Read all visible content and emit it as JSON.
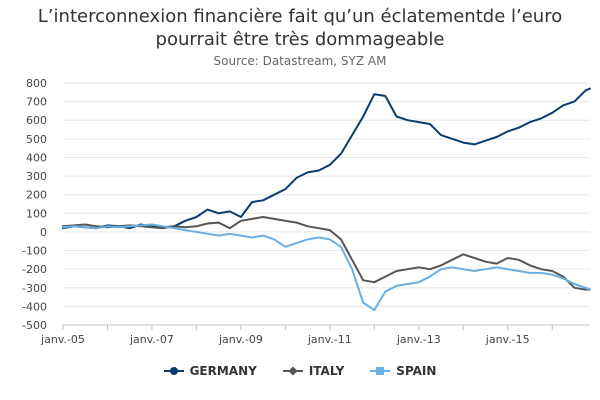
{
  "chart_data": {
    "type": "line",
    "title": "L’interconnexion financière fait qu’un éclatementde l’euro pourrait être très dommageable",
    "title_lines": [
      "L’interconnexion financière fait qu’un éclatementde l’euro",
      "pourrait être très dommageable"
    ],
    "subtitle": "Source: Datastream, SYZ AM",
    "xlabel": "",
    "ylabel": "",
    "x_ticks": [
      "janv.-05",
      "janv.-07",
      "janv.-09",
      "janv.-11",
      "janv.-13",
      "janv.-15"
    ],
    "y_ticks": [
      "800",
      "700",
      "600",
      "500",
      "400",
      "300",
      "200",
      "100",
      "0",
      "-100",
      "-200",
      "-300",
      "-400",
      "-500"
    ],
    "ylim": [
      -500,
      800
    ],
    "xlim": [
      2005.0,
      2016.85
    ],
    "grid": true,
    "legend_position": "bottom",
    "x": [
      2005.0,
      2005.25,
      2005.5,
      2005.75,
      2006.0,
      2006.25,
      2006.5,
      2006.75,
      2007.0,
      2007.25,
      2007.5,
      2007.75,
      2008.0,
      2008.25,
      2008.5,
      2008.75,
      2009.0,
      2009.25,
      2009.5,
      2009.75,
      2010.0,
      2010.25,
      2010.5,
      2010.75,
      2011.0,
      2011.25,
      2011.5,
      2011.75,
      2012.0,
      2012.25,
      2012.5,
      2012.75,
      2013.0,
      2013.25,
      2013.5,
      2013.75,
      2014.0,
      2014.25,
      2014.5,
      2014.75,
      2015.0,
      2015.25,
      2015.5,
      2015.75,
      2016.0,
      2016.25,
      2016.5,
      2016.75,
      2016.85
    ],
    "series": [
      {
        "name": "GERMANY",
        "color": "#0b3c6e",
        "marker": "circle",
        "values": [
          20,
          30,
          25,
          20,
          35,
          30,
          20,
          40,
          30,
          25,
          30,
          60,
          80,
          120,
          100,
          110,
          80,
          160,
          170,
          200,
          230,
          290,
          320,
          330,
          360,
          420,
          520,
          620,
          740,
          730,
          620,
          600,
          590,
          580,
          520,
          500,
          480,
          470,
          490,
          510,
          540,
          560,
          590,
          610,
          640,
          680,
          700,
          760,
          770
        ]
      },
      {
        "name": "ITALY",
        "color": "#555555",
        "marker": "diamond",
        "values": [
          30,
          35,
          40,
          30,
          25,
          30,
          35,
          30,
          25,
          20,
          30,
          25,
          30,
          45,
          50,
          20,
          60,
          70,
          80,
          70,
          60,
          50,
          30,
          20,
          10,
          -40,
          -150,
          -260,
          -270,
          -240,
          -210,
          -200,
          -190,
          -200,
          -180,
          -150,
          -120,
          -140,
          -160,
          -170,
          -140,
          -150,
          -180,
          -200,
          -210,
          -240,
          -300,
          -310,
          -310
        ]
      },
      {
        "name": "SPAIN",
        "color": "#6aaee6",
        "marker": "square",
        "values": [
          25,
          30,
          25,
          20,
          30,
          25,
          30,
          35,
          40,
          30,
          20,
          10,
          0,
          -10,
          -20,
          -10,
          -20,
          -30,
          -20,
          -40,
          -80,
          -60,
          -40,
          -30,
          -40,
          -80,
          -200,
          -380,
          -420,
          -320,
          -290,
          -280,
          -270,
          -240,
          -200,
          -190,
          -200,
          -210,
          -200,
          -190,
          -200,
          -210,
          -220,
          -220,
          -230,
          -250,
          -280,
          -300,
          -310
        ]
      }
    ]
  }
}
